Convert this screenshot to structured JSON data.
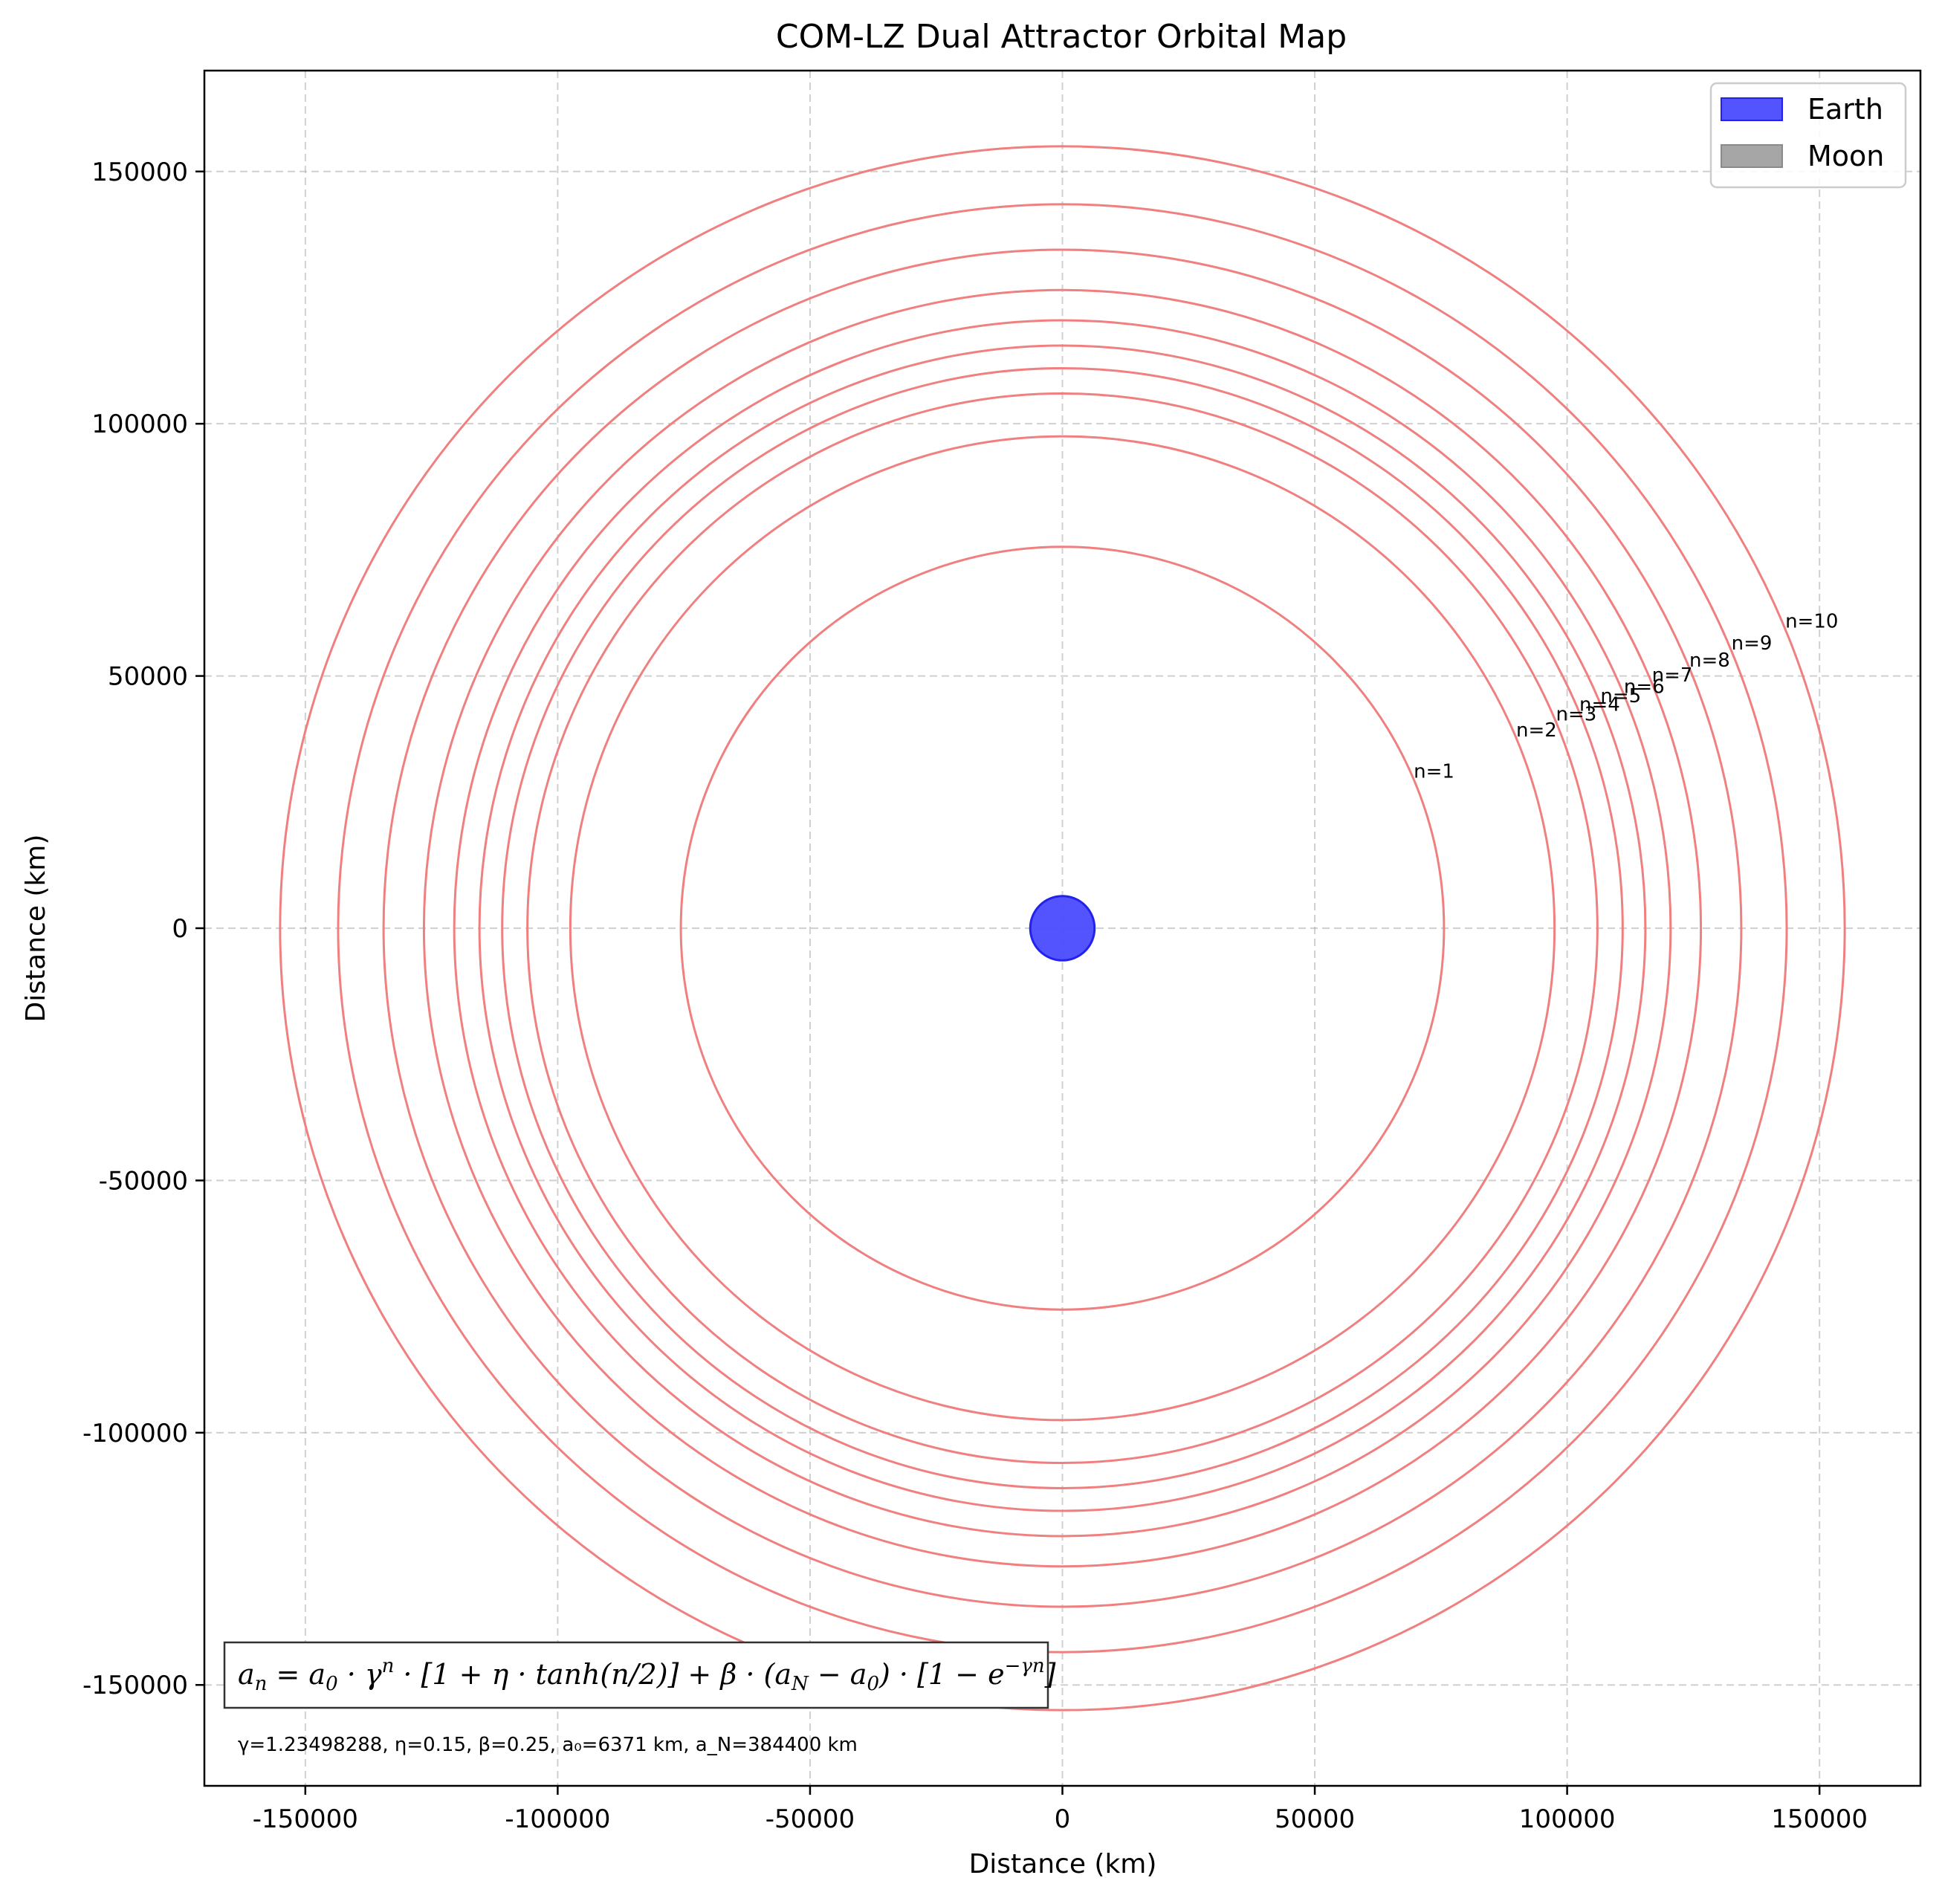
{
  "chart_data": {
    "type": "scatter",
    "title": "COM-LZ Dual Attractor Orbital Map",
    "xlabel": "Distance (km)",
    "ylabel": "Distance (km)",
    "xlim": [
      -170000,
      170000
    ],
    "ylim": [
      -170000,
      170000
    ],
    "xticks": [
      -150000,
      -100000,
      -50000,
      0,
      50000,
      100000,
      150000
    ],
    "yticks": [
      -150000,
      -100000,
      -50000,
      0,
      50000,
      100000,
      150000
    ],
    "xtick_labels": [
      "-150000",
      "-100000",
      "-50000",
      "0",
      "50000",
      "100000",
      "150000"
    ],
    "ytick_labels": [
      "-150000",
      "-100000",
      "-50000",
      "0",
      "50000",
      "100000",
      "150000"
    ],
    "grid": true,
    "legend_placement": "top-right",
    "legend": [
      {
        "label": "Earth",
        "color": "#4b4bff"
      },
      {
        "label": "Moon",
        "color": "#a6a6a6"
      }
    ],
    "earth": {
      "x": 0,
      "y": 0,
      "radius": 6371,
      "color": "#4b4bff"
    },
    "orbit_color": "#f08080",
    "orbits": [
      {
        "n": 1,
        "label": "n=1",
        "radius": 75600
      },
      {
        "n": 2,
        "label": "n=2",
        "radius": 97500
      },
      {
        "n": 3,
        "label": "n=3",
        "radius": 106000
      },
      {
        "n": 4,
        "label": "n=4",
        "radius": 111000
      },
      {
        "n": 5,
        "label": "n=5",
        "radius": 115500
      },
      {
        "n": 6,
        "label": "n=6",
        "radius": 120500
      },
      {
        "n": 7,
        "label": "n=7",
        "radius": 126500
      },
      {
        "n": 8,
        "label": "n=8",
        "radius": 134500
      },
      {
        "n": 9,
        "label": "n=9",
        "radius": 143500
      },
      {
        "n": 10,
        "label": "n=10",
        "radius": 155000
      }
    ],
    "formula_parts": {
      "lhs": "a",
      "lhs_sub": "n",
      "eq": " = a",
      "a0_sub": "0",
      "gamma": " · γ",
      "gamma_sup": "n",
      "mid": " · [1 + η · tanh(n/2)] + β · (a",
      "aN_sub": "N",
      "minus": " − a",
      "a0_sub2": "0",
      "tail": ") · [1 − e",
      "exp_sup": "−γn",
      "end": "]"
    },
    "params_text": "γ=1.23498288, η=0.15, β=0.25, a₀=6371 km, a_N=384400 km"
  }
}
